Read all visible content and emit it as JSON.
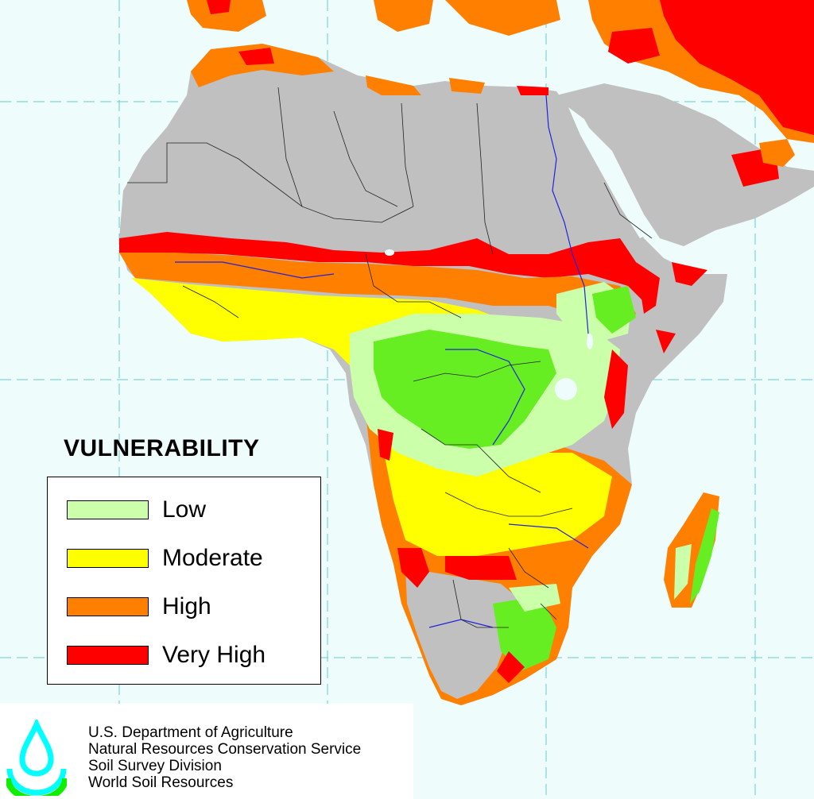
{
  "legend": {
    "title": "VULNERABILITY",
    "items": [
      {
        "label": "Low",
        "color": "#ccffaa"
      },
      {
        "label": "Moderate",
        "color": "#ffff00"
      },
      {
        "label": "High",
        "color": "#ff7f00"
      },
      {
        "label": "Very High",
        "color": "#ff0000"
      }
    ]
  },
  "credits": {
    "lines": [
      "U.S. Department of Agriculture",
      "Natural Resources Conservation Service",
      "Soil Survey Division",
      "World Soil Resources"
    ],
    "logo_icon": "water-drop-logo-icon"
  },
  "map_colors": {
    "water": "#eefcfc",
    "land_not_vulnerable": "#c0c0c0",
    "forest_green": "#66ee22",
    "river": "#2222dd",
    "border": "#222222",
    "graticule": "#66cccc"
  }
}
